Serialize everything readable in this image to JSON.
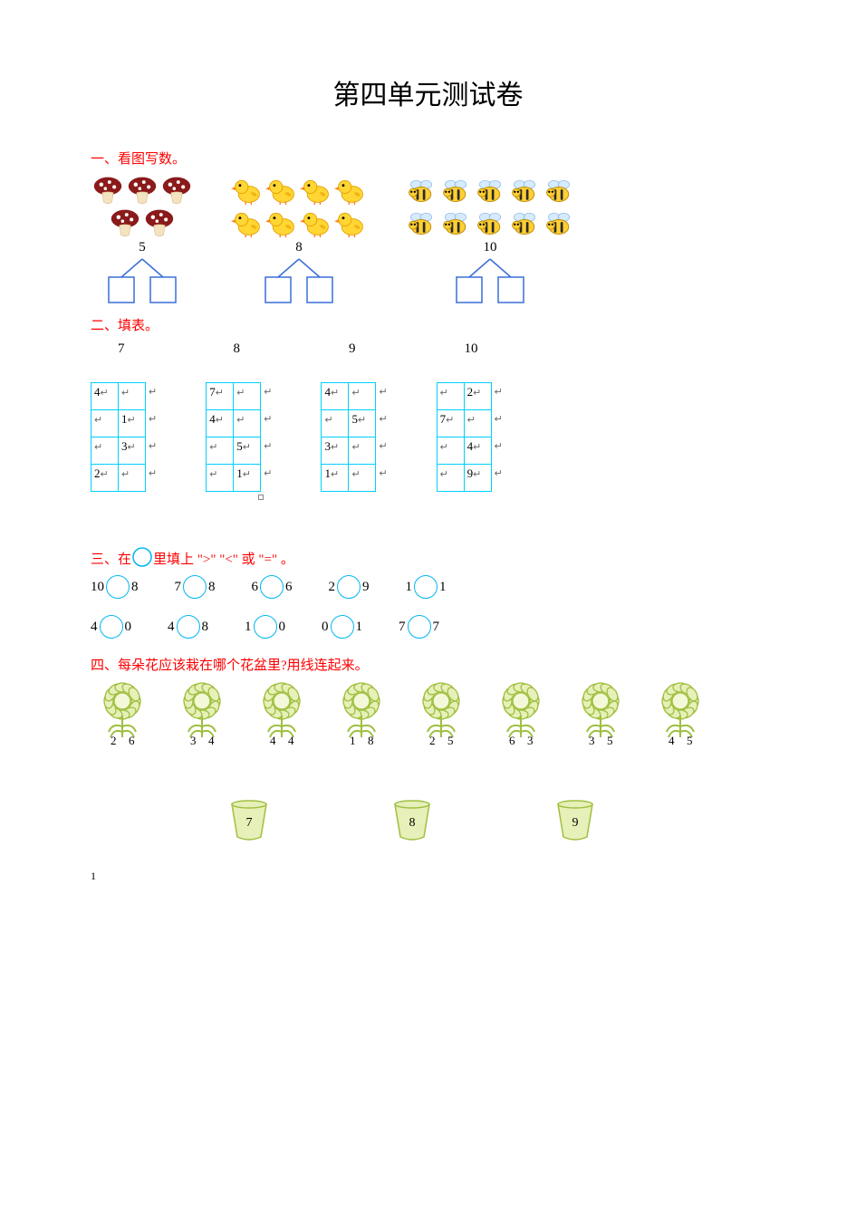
{
  "title": "第四单元测试卷",
  "s1": {
    "heading": "一、看图写数。",
    "groups": [
      {
        "icon": "mushroom",
        "count": 5,
        "total": "5"
      },
      {
        "icon": "chick",
        "count": 8,
        "total": "8"
      },
      {
        "icon": "bee",
        "count": 10,
        "total": "10"
      }
    ],
    "colors": {
      "mushroom_cap": "#8b1a1a",
      "mushroom_spot": "#ffffff",
      "mushroom_stem": "#f4e3c0",
      "chick_body": "#ffd633",
      "chick_outline": "#e59f00",
      "chick_beak": "#ff7f1a",
      "bee_body": "#ffcf33",
      "bee_stripe": "#2a2a2a",
      "bee_wing": "#cfe8ff",
      "split_line": "#3a6fd8",
      "split_box": "#3a6fd8"
    }
  },
  "s2": {
    "heading": "二、填表。",
    "top_numbers": [
      "7",
      "8",
      "9",
      "10"
    ],
    "tables": [
      [
        [
          "4",
          ""
        ],
        [
          "",
          "1"
        ],
        [
          "",
          "3"
        ],
        [
          "2",
          ""
        ]
      ],
      [
        [
          "7",
          ""
        ],
        [
          "4",
          ""
        ],
        [
          "",
          "5"
        ],
        [
          "",
          "1"
        ]
      ],
      [
        [
          "4",
          ""
        ],
        [
          "",
          "5"
        ],
        [
          "3",
          ""
        ],
        [
          "1",
          ""
        ]
      ],
      [
        [
          "",
          "2"
        ],
        [
          "7",
          ""
        ],
        [
          "",
          "4"
        ],
        [
          "",
          "9"
        ]
      ]
    ],
    "border_color": "#00d0ff",
    "mark": "↵"
  },
  "s3": {
    "heading_a": "三、在",
    "heading_b": "里填上 \">\" \"<\" 或 \"=\" 。",
    "circle_color": "#00b7f0",
    "row1": [
      [
        "10",
        "8"
      ],
      [
        "7",
        "8"
      ],
      [
        "6",
        "6"
      ],
      [
        "2",
        "9"
      ],
      [
        "1",
        "1"
      ]
    ],
    "row2": [
      [
        "4",
        "0"
      ],
      [
        "4",
        "8"
      ],
      [
        "1",
        "0"
      ],
      [
        "0",
        "1"
      ],
      [
        "7",
        "7"
      ]
    ]
  },
  "s4": {
    "heading": "四、每朵花应该栽在哪个花盆里?用线连起来。",
    "flowers": [
      [
        "2",
        "6"
      ],
      [
        "3",
        "4"
      ],
      [
        "4",
        "4"
      ],
      [
        "1",
        "8"
      ],
      [
        "2",
        "5"
      ],
      [
        "6",
        "3"
      ],
      [
        "3",
        "5"
      ],
      [
        "4",
        "5"
      ]
    ],
    "pots": [
      "7",
      "8",
      "9"
    ],
    "flower_fill": "#e6f0b8",
    "flower_stroke": "#9fbf3f",
    "pot_fill": "#e6f0b8",
    "pot_stroke": "#9fbf3f"
  },
  "page_number": "1"
}
